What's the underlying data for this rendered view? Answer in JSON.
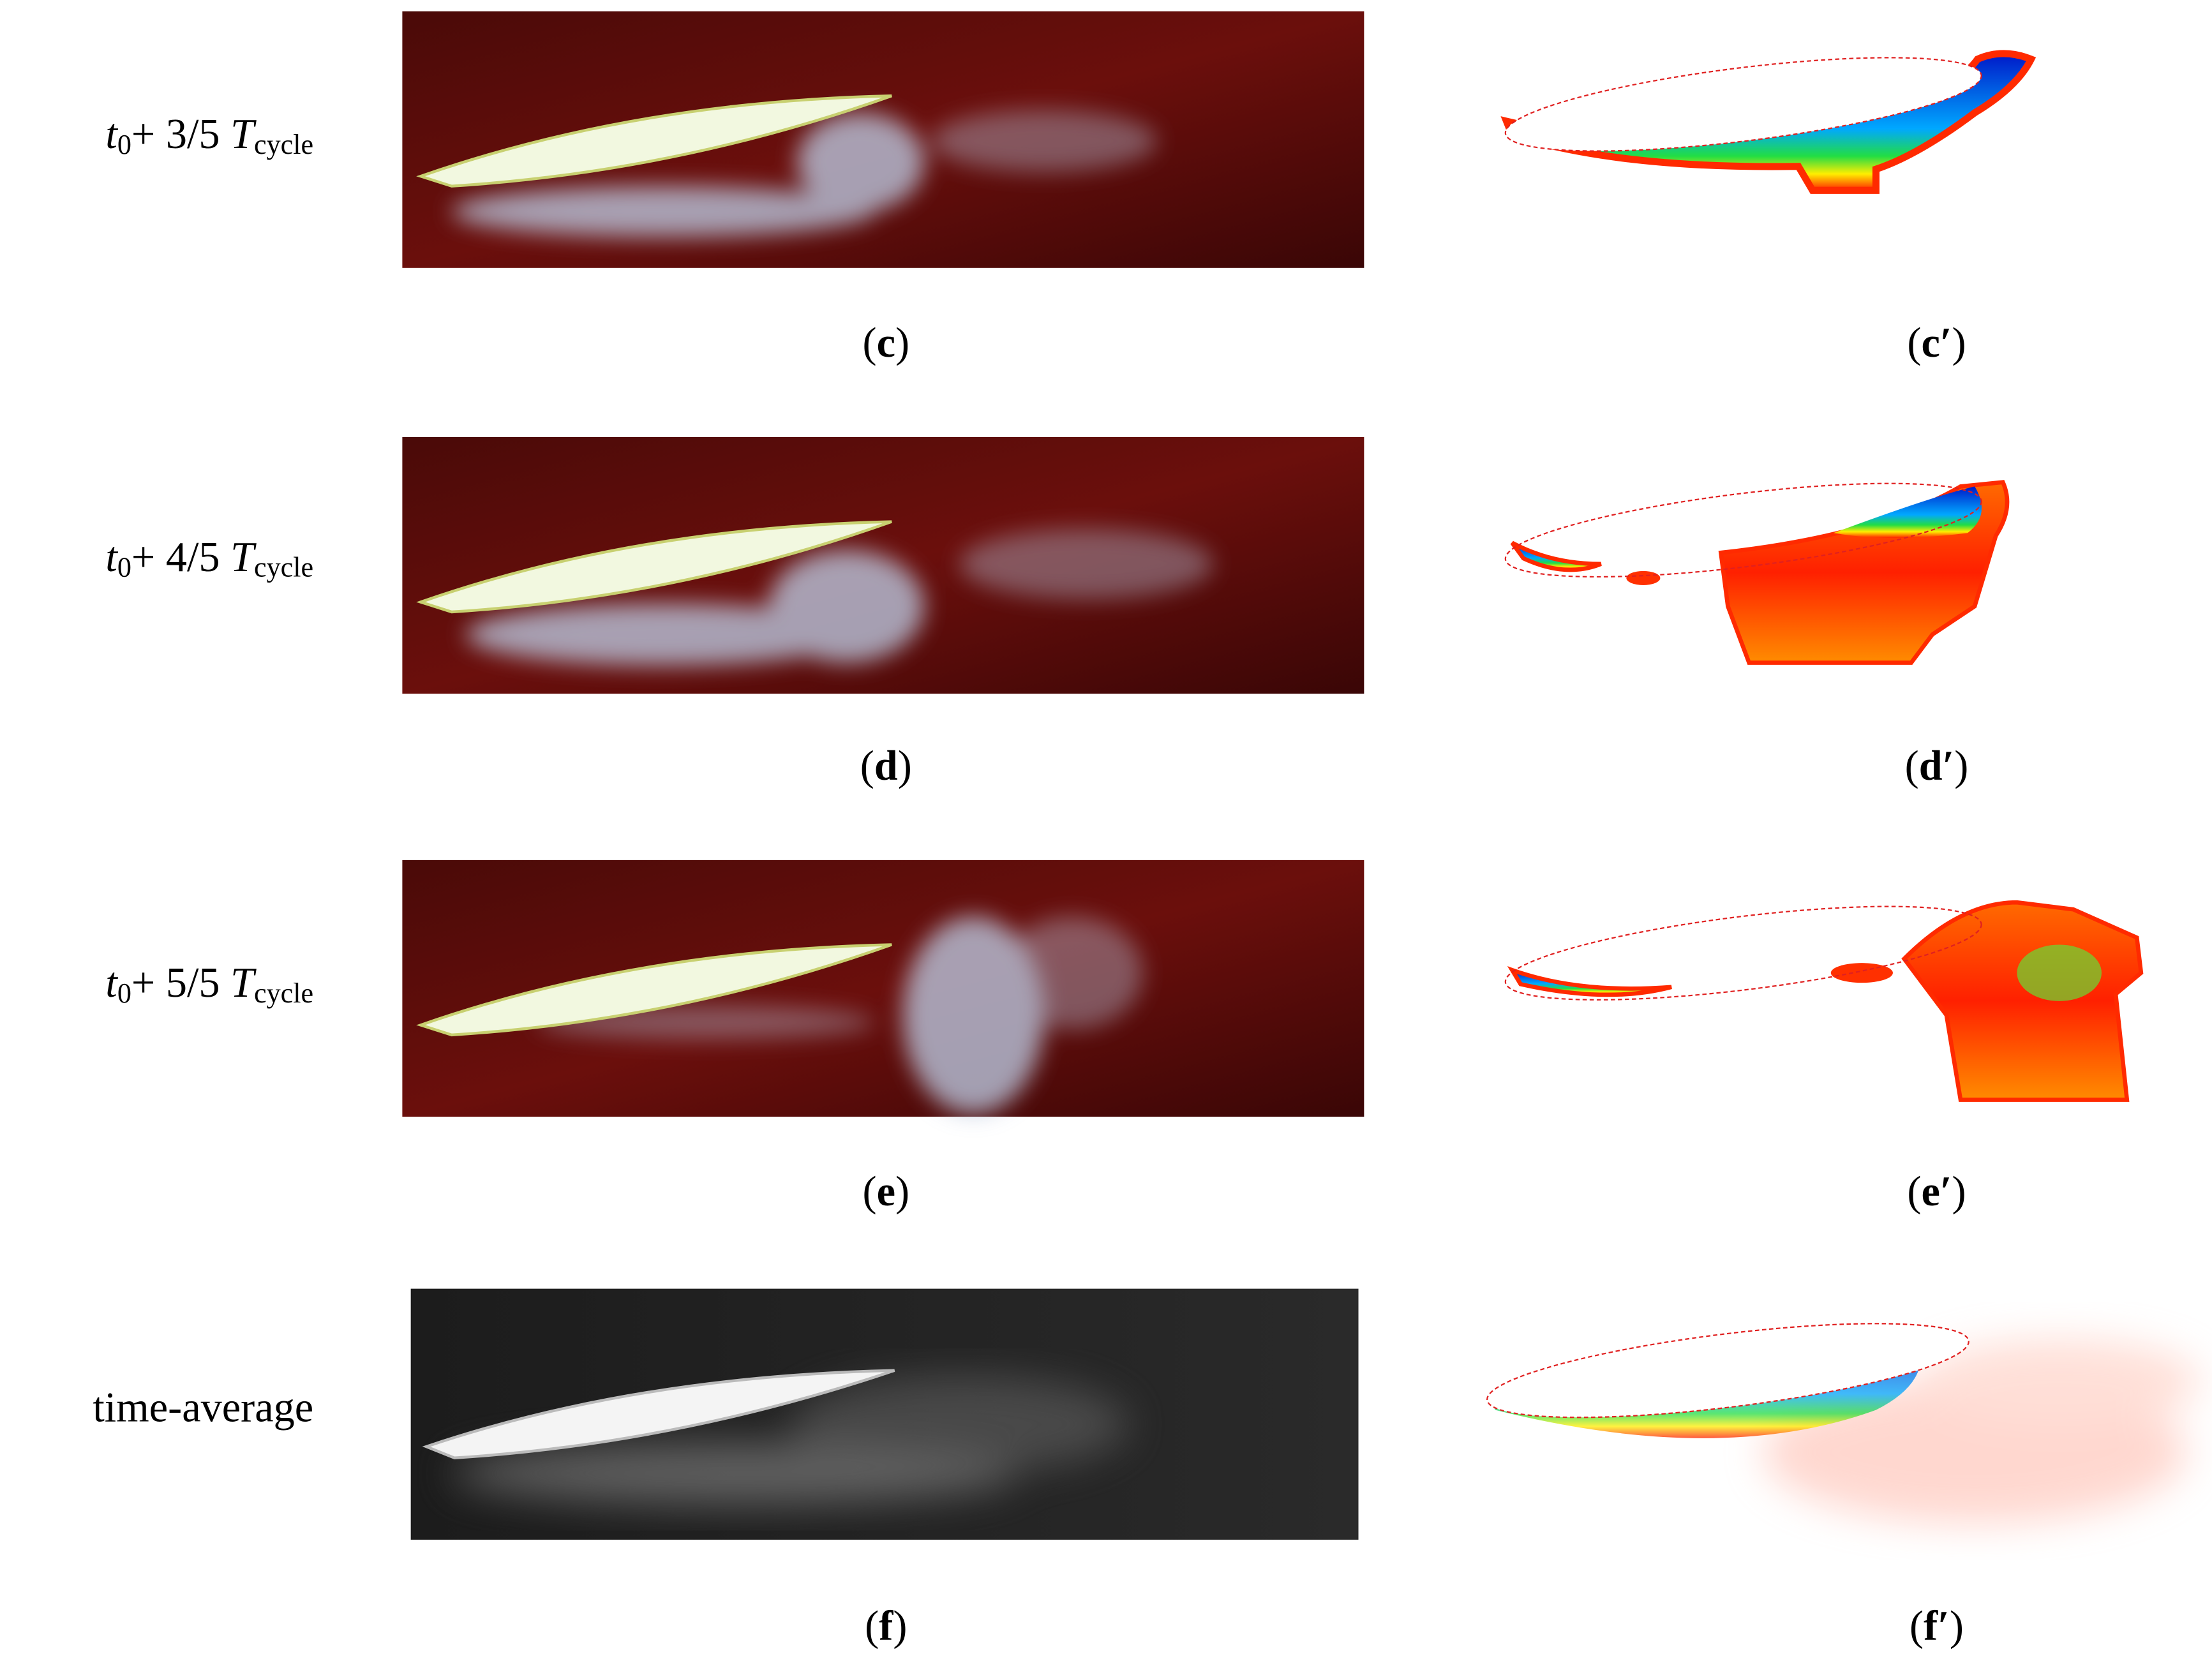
{
  "rows": [
    {
      "label": [
        {
          "text": "t",
          "italic": true
        },
        {
          "text": "0",
          "sub": true
        },
        {
          "text": "+ 3/5 "
        },
        {
          "text": "T",
          "italic": true
        },
        {
          "text": "cycle",
          "sub": true
        }
      ],
      "captions": [
        [
          "(",
          "c",
          ")"
        ],
        [
          "(",
          "c′",
          ")"
        ]
      ]
    },
    {
      "label": [
        {
          "text": "t",
          "italic": true
        },
        {
          "text": "0",
          "sub": true
        },
        {
          "text": "+ 4/5 "
        },
        {
          "text": "T",
          "italic": true
        },
        {
          "text": "cycle",
          "sub": true
        }
      ],
      "captions": [
        [
          "(",
          "d",
          ")"
        ],
        [
          "(",
          "d′",
          ")"
        ]
      ]
    },
    {
      "label": [
        {
          "text": "t",
          "italic": true
        },
        {
          "text": "0",
          "sub": true
        },
        {
          "text": "+ 5/5 "
        },
        {
          "text": "T",
          "italic": true
        },
        {
          "text": "cycle",
          "sub": true
        }
      ],
      "captions": [
        [
          "(",
          "e",
          ")"
        ],
        [
          "(",
          "e′",
          ")"
        ]
      ]
    },
    {
      "label": [
        {
          "text": "time-average"
        }
      ],
      "captions": [
        [
          "(",
          "f",
          ")"
        ],
        [
          "(",
          "f′",
          ")"
        ]
      ]
    }
  ]
}
